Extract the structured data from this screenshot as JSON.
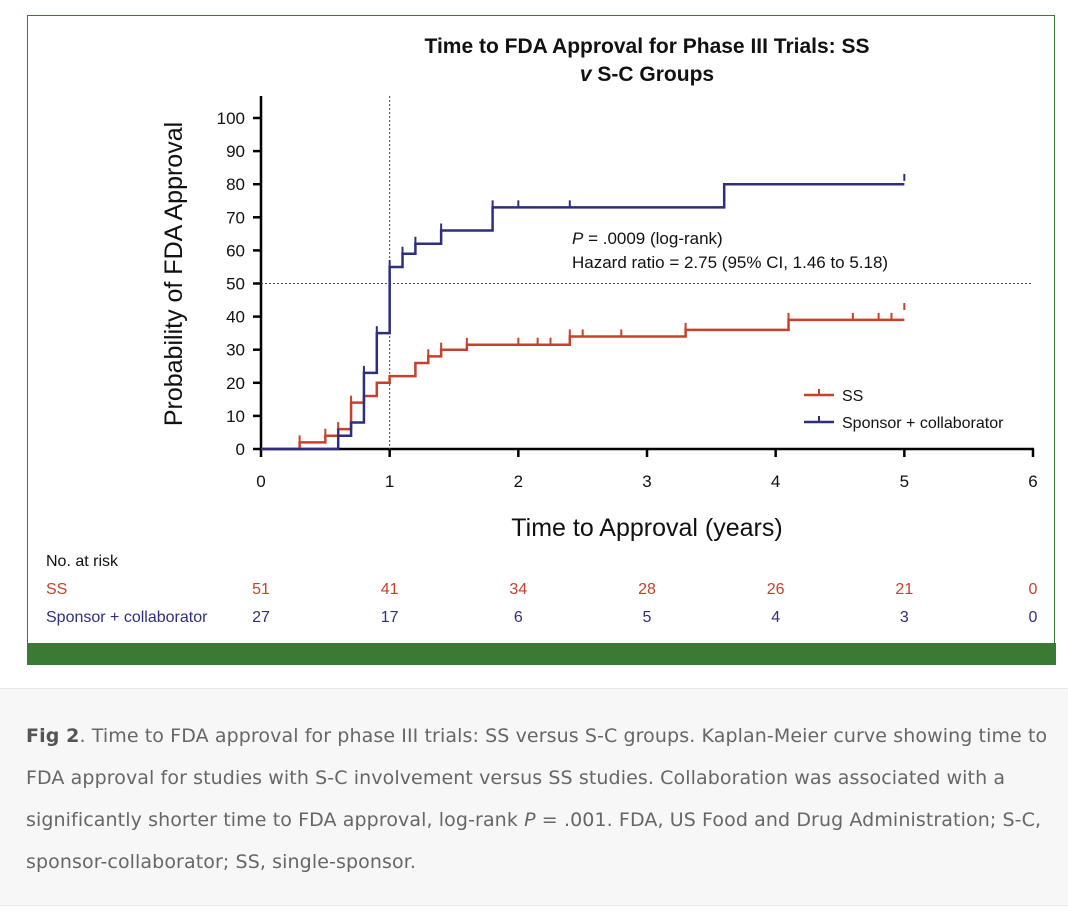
{
  "chart_data": {
    "type": "line",
    "title_line1": "Time to FDA Approval for Phase III Trials: SS",
    "title_line2_italic": "v",
    "title_line2_rest": " S-C Groups",
    "xlabel": "Time to Approval (years)",
    "ylabel": "Probability of FDA Approval",
    "xlim": [
      0,
      6
    ],
    "ylim": [
      0,
      100
    ],
    "x_ticks": [
      "0",
      "1",
      "2",
      "3",
      "4",
      "5",
      "6"
    ],
    "y_ticks": [
      "0",
      "10",
      "20",
      "30",
      "40",
      "50",
      "60",
      "70",
      "80",
      "90",
      "100"
    ],
    "reference_lines": {
      "x": 1,
      "y": 50
    },
    "annotation": {
      "p_label": "P",
      "p_text": " = .0009 (log-rank)",
      "hr_text": "Hazard ratio = 2.75 (95% CI, 1.46 to 5.18)"
    },
    "legend": {
      "position": "lower-right"
    },
    "series": [
      {
        "name": "SS",
        "color": "#c8402b",
        "steps": [
          [
            0,
            0
          ],
          [
            0.3,
            2
          ],
          [
            0.5,
            4
          ],
          [
            0.6,
            6
          ],
          [
            0.7,
            14
          ],
          [
            0.8,
            16
          ],
          [
            0.9,
            20
          ],
          [
            1.0,
            22
          ],
          [
            1.2,
            26
          ],
          [
            1.3,
            28
          ],
          [
            1.4,
            30
          ],
          [
            1.6,
            31.5
          ],
          [
            2.4,
            34
          ],
          [
            3.3,
            36
          ],
          [
            4.1,
            39
          ],
          [
            5.0,
            39
          ]
        ],
        "censor": [
          [
            0.3,
            2
          ],
          [
            0.5,
            4
          ],
          [
            0.6,
            6
          ],
          [
            0.7,
            14
          ],
          [
            1.3,
            28
          ],
          [
            1.4,
            30
          ],
          [
            1.6,
            31.5
          ],
          [
            2.0,
            31.5
          ],
          [
            2.15,
            31.5
          ],
          [
            2.25,
            31.5
          ],
          [
            2.4,
            34
          ],
          [
            2.5,
            34
          ],
          [
            2.8,
            34
          ],
          [
            3.3,
            36
          ],
          [
            4.1,
            39
          ],
          [
            4.6,
            39
          ],
          [
            4.8,
            39
          ],
          [
            4.9,
            39
          ],
          [
            5.0,
            42
          ]
        ]
      },
      {
        "name": "Sponsor + collaborator",
        "color": "#2e2e7e",
        "steps": [
          [
            0,
            0
          ],
          [
            0.6,
            4
          ],
          [
            0.7,
            8
          ],
          [
            0.8,
            23
          ],
          [
            0.9,
            35
          ],
          [
            1.0,
            55
          ],
          [
            1.1,
            59
          ],
          [
            1.2,
            62
          ],
          [
            1.4,
            66
          ],
          [
            1.8,
            73
          ],
          [
            3.6,
            80
          ],
          [
            5.0,
            80
          ]
        ],
        "censor": [
          [
            0.6,
            4
          ],
          [
            0.8,
            23
          ],
          [
            0.9,
            35
          ],
          [
            1.0,
            55
          ],
          [
            1.1,
            59
          ],
          [
            1.2,
            62
          ],
          [
            1.4,
            66
          ],
          [
            1.8,
            73
          ],
          [
            2.0,
            73
          ],
          [
            2.4,
            73
          ],
          [
            5.0,
            81
          ]
        ]
      }
    ],
    "risk_table": {
      "header": "No. at risk",
      "x": [
        0,
        1,
        2,
        3,
        4,
        5,
        6
      ],
      "rows": [
        {
          "label": "SS",
          "color": "#c8402b",
          "values": [
            "51",
            "41",
            "34",
            "28",
            "26",
            "21",
            "0"
          ]
        },
        {
          "label": "Sponsor + collaborator",
          "color": "#2e2e7e",
          "values": [
            "27",
            "17",
            "6",
            "5",
            "4",
            "3",
            "0"
          ]
        }
      ]
    }
  },
  "caption": {
    "fig_label": "Fig 2",
    "part1": ". Time to FDA approval for phase III trials: SS versus S-C groups. Kaplan-Meier curve showing time to FDA approval for studies with S-C involvement versus SS studies. Collaboration was associated with a significantly shorter time to FDA approval, log-rank ",
    "p_italic": "P",
    "part2": " = .001. FDA, US Food and Drug Administration; S-C, sponsor-collaborator; SS, single-sponsor."
  }
}
